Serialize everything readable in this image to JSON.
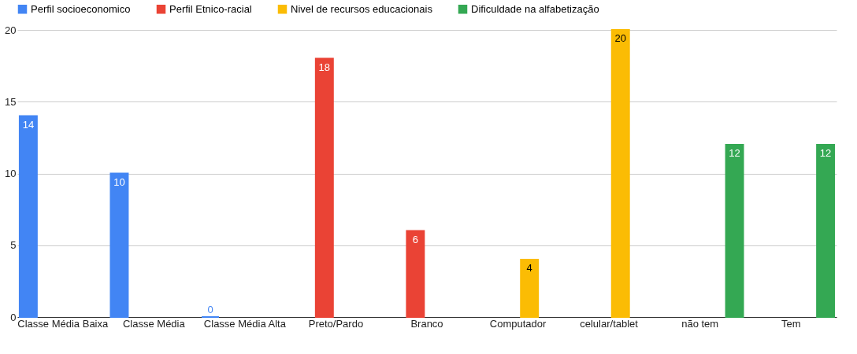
{
  "chart_data": {
    "type": "bar",
    "categories": [
      "Classe Média Baixa",
      "Classe Média",
      "Classe Média Alta",
      "Preto/Pardo",
      "Branco",
      "Computador",
      "celular/tablet",
      "não tem",
      "Tem"
    ],
    "series": [
      {
        "name": "Perfil socioeconomico",
        "color": "#4285f4",
        "values": [
          14,
          10,
          0,
          null,
          null,
          null,
          null,
          null,
          null
        ]
      },
      {
        "name": "Perfil Etnico-racial",
        "color": "#ea4335",
        "values": [
          null,
          null,
          null,
          18,
          6,
          null,
          null,
          null,
          null
        ]
      },
      {
        "name": "Nivel de recursos educacionais",
        "color": "#fbbc04",
        "values": [
          null,
          null,
          null,
          null,
          null,
          4,
          20,
          null,
          null
        ]
      },
      {
        "name": "Dificuldade na alfabetização",
        "color": "#34a853",
        "values": [
          null,
          null,
          null,
          null,
          null,
          null,
          null,
          12,
          12
        ]
      }
    ],
    "ylim": [
      0,
      20
    ],
    "yticks": [
      0,
      5,
      10,
      15,
      20
    ],
    "grid": "y",
    "legend": "top",
    "data_labels": true
  }
}
